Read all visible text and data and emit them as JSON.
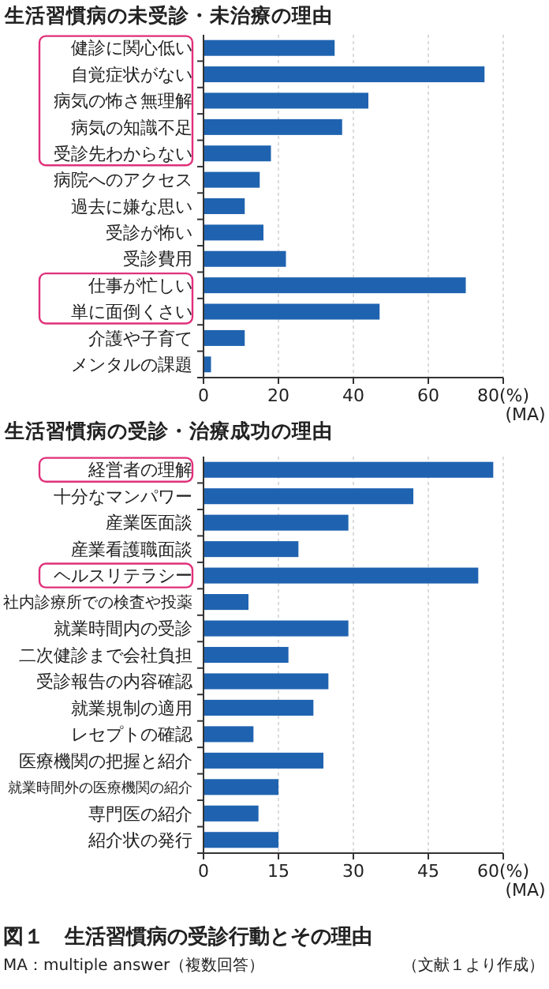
{
  "chart_data": [
    {
      "type": "bar",
      "orientation": "horizontal",
      "title": "生活習慣病の未受診・未治療の理由",
      "categories": [
        "健診に関心低い",
        "自覚症状がない",
        "病気の怖さ無理解",
        "病気の知識不足",
        "受診先わからない",
        "病院へのアクセス",
        "過去に嫌な思い",
        "受診が怖い",
        "受診費用",
        "仕事が忙しい",
        "単に面倒くさい",
        "介護や子育て",
        "メンタルの課題"
      ],
      "values": [
        35,
        75,
        44,
        37,
        18,
        15,
        11,
        16,
        22,
        70,
        47,
        11,
        2
      ],
      "color": "#1f63b0",
      "xlim": [
        0,
        80
      ],
      "xticks": [
        0,
        20,
        40,
        60,
        {
          "value": 80,
          "label": "80(%)"
        }
      ],
      "xlabel": "(MA)",
      "grid": "x"
    },
    {
      "type": "bar",
      "orientation": "horizontal",
      "title": "生活習慣病の受診・治療成功の理由",
      "categories": [
        "経営者の理解",
        "十分なマンパワー",
        "産業医面談",
        "産業看護職面談",
        "ヘルスリテラシー",
        "社内診療所での検査や投薬",
        "就業時間内の受診",
        "二次健診まで会社負担",
        "受診報告の内容確認",
        "就業規制の適用",
        "レセプトの確認",
        "医療機関の把握と紹介",
        "就業時間外の医療機関の紹介",
        "専門医の紹介",
        "紹介状の発行"
      ],
      "values": [
        58,
        42,
        29,
        19,
        55,
        9,
        29,
        17,
        25,
        22,
        10,
        24,
        15,
        11,
        15
      ],
      "color": "#1f63b0",
      "xlim": [
        0,
        60
      ],
      "xticks": [
        0,
        15,
        30,
        45,
        {
          "value": 60,
          "label": "60(%)"
        }
      ],
      "xlabel": "(MA)",
      "grid": "x",
      "annotations": [
        "図１　生活習慣病の受診行動とその理由",
        "MA：multiple answer（複数回答）",
        "（文献１より作成）"
      ]
    }
  ]
}
